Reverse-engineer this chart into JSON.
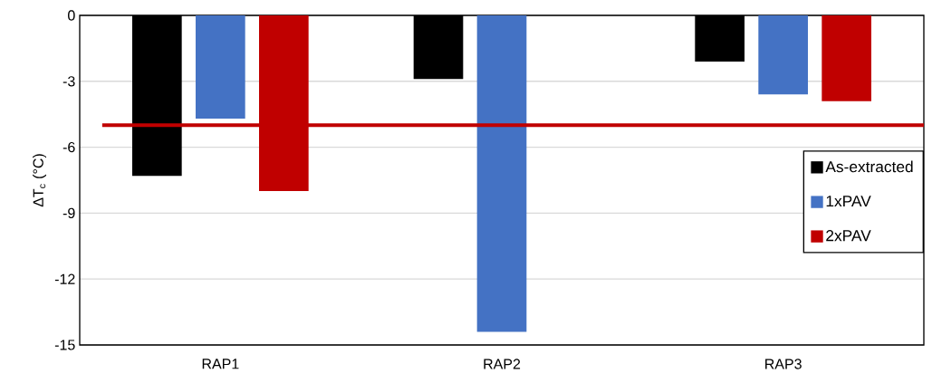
{
  "chart_data": {
    "type": "bar",
    "ylabel": "ΔT$_{c}$ (°C)",
    "categories": [
      "RAP1",
      "RAP2",
      "RAP3"
    ],
    "series": [
      {
        "name": "As-extracted",
        "color": "#000000",
        "values": [
          -7.3,
          -2.9,
          -2.1
        ]
      },
      {
        "name": "1xPAV",
        "color": "#4472c4",
        "values": [
          -4.7,
          -14.4,
          -3.6
        ]
      },
      {
        "name": "2xPAV",
        "color": "#c00000",
        "values": [
          -8.0,
          null,
          -3.9
        ]
      }
    ],
    "ylim": [
      -15,
      0
    ],
    "yticks": [
      0,
      -3,
      -6,
      -9,
      -12,
      -15
    ],
    "grid": "y",
    "legend": "right",
    "ref_lines": [
      {
        "axis": "y",
        "value": -5,
        "color": "#c00000"
      }
    ]
  }
}
